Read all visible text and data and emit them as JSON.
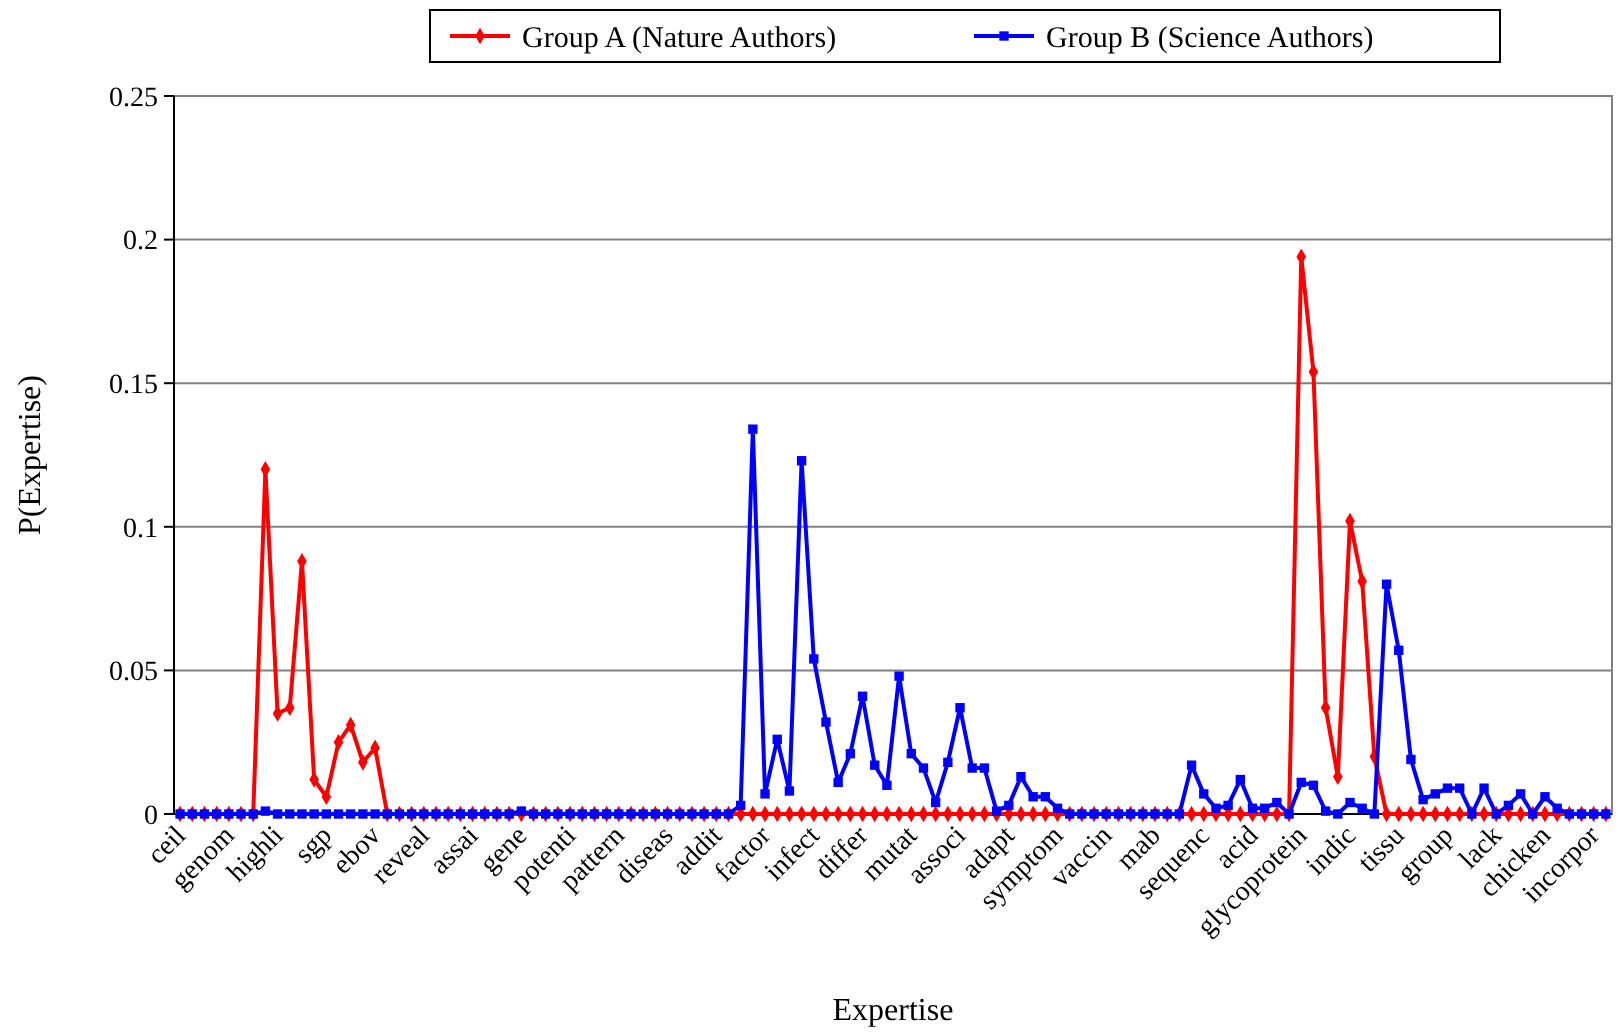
{
  "chart_data": {
    "type": "line",
    "xlabel": "Expertise",
    "ylabel": "P(Expertise)",
    "categories": [
      "ceil",
      null,
      null,
      null,
      "genom",
      null,
      null,
      null,
      "highli",
      null,
      null,
      null,
      "sgp",
      null,
      null,
      null,
      "ebov",
      null,
      null,
      null,
      "reveal",
      null,
      null,
      null,
      "assai",
      null,
      null,
      null,
      "gene",
      null,
      null,
      null,
      "potenti",
      null,
      null,
      null,
      "pattern",
      null,
      null,
      null,
      "diseas",
      null,
      null,
      null,
      "addit",
      null,
      null,
      null,
      "factor",
      null,
      null,
      null,
      "infect",
      null,
      null,
      null,
      "differ",
      null,
      null,
      null,
      "mutat",
      null,
      null,
      null,
      "associ",
      null,
      null,
      null,
      "adapt",
      null,
      null,
      null,
      "symptom",
      null,
      null,
      null,
      "vaccin",
      null,
      null,
      null,
      "mab",
      null,
      null,
      null,
      "sequenc",
      null,
      null,
      null,
      "acid",
      null,
      null,
      null,
      "glycoprotein",
      null,
      null,
      null,
      "indic",
      null,
      null,
      null,
      "tissu",
      null,
      null,
      null,
      "group",
      null,
      null,
      null,
      "lack",
      null,
      null,
      null,
      "chicken",
      null,
      null,
      null,
      "incorpor",
      null
    ],
    "series": [
      {
        "name": "Group A (Nature Authors)",
        "color": "#ff0000",
        "marker": "diamond",
        "values": [
          0,
          0,
          0,
          0,
          0,
          0,
          0,
          0.12,
          0.035,
          0.037,
          0.088,
          0.012,
          0.006,
          0.025,
          0.031,
          0.018,
          0.023,
          0,
          0,
          0,
          0,
          0,
          0,
          0,
          0,
          0,
          0,
          0,
          0,
          0,
          0,
          0,
          0,
          0,
          0,
          0,
          0,
          0,
          0,
          0,
          0,
          0,
          0,
          0,
          0,
          0,
          0,
          0,
          0,
          0,
          0,
          0,
          0,
          0,
          0,
          0,
          0,
          0,
          0,
          0,
          0,
          0,
          0,
          0,
          0,
          0,
          0,
          0,
          0,
          0,
          0,
          0,
          0,
          0,
          0,
          0,
          0,
          0,
          0,
          0,
          0,
          0,
          0,
          0,
          0,
          0,
          0,
          0,
          0,
          0,
          0,
          0,
          0.194,
          0.154,
          0.037,
          0.013,
          0.102,
          0.081,
          0.02,
          0,
          0,
          0,
          0,
          0,
          0,
          0,
          0,
          0,
          0,
          0,
          0,
          0,
          0,
          0,
          0,
          0,
          0,
          0
        ]
      },
      {
        "name": "Group B (Science Authors)",
        "color": "#0000ff",
        "marker": "square",
        "values": [
          0,
          0,
          0,
          0,
          0,
          0,
          0,
          0.001,
          0,
          0,
          0,
          0,
          0,
          0,
          0,
          0,
          0,
          0,
          0,
          0,
          0,
          0,
          0,
          0,
          0,
          0,
          0,
          0,
          0.001,
          0,
          0,
          0,
          0,
          0,
          0,
          0,
          0,
          0,
          0,
          0,
          0,
          0,
          0,
          0,
          0,
          0,
          0.003,
          0.134,
          0.007,
          0.026,
          0.008,
          0.123,
          0.054,
          0.032,
          0.011,
          0.021,
          0.041,
          0.017,
          0.01,
          0.048,
          0.021,
          0.016,
          0.004,
          0.018,
          0.037,
          0.016,
          0.016,
          0.001,
          0.003,
          0.013,
          0.006,
          0.006,
          0.002,
          0,
          0,
          0,
          0,
          0,
          0,
          0,
          0,
          0,
          0,
          0.017,
          0.007,
          0.002,
          0.003,
          0.012,
          0.002,
          0.002,
          0.004,
          0,
          0.011,
          0.01,
          0.001,
          0,
          0.004,
          0.002,
          0,
          0.08,
          0.057,
          0.019,
          0.005,
          0.007,
          0.009,
          0.009,
          0,
          0.009,
          0,
          0.003,
          0.007,
          0,
          0.006,
          0.002,
          0,
          0,
          0,
          0
        ]
      }
    ],
    "ylim": [
      0,
      0.25
    ],
    "yticks": [
      0,
      0.05,
      0.1,
      0.15,
      0.2,
      0.25
    ],
    "grid": "y",
    "legend": "top"
  }
}
